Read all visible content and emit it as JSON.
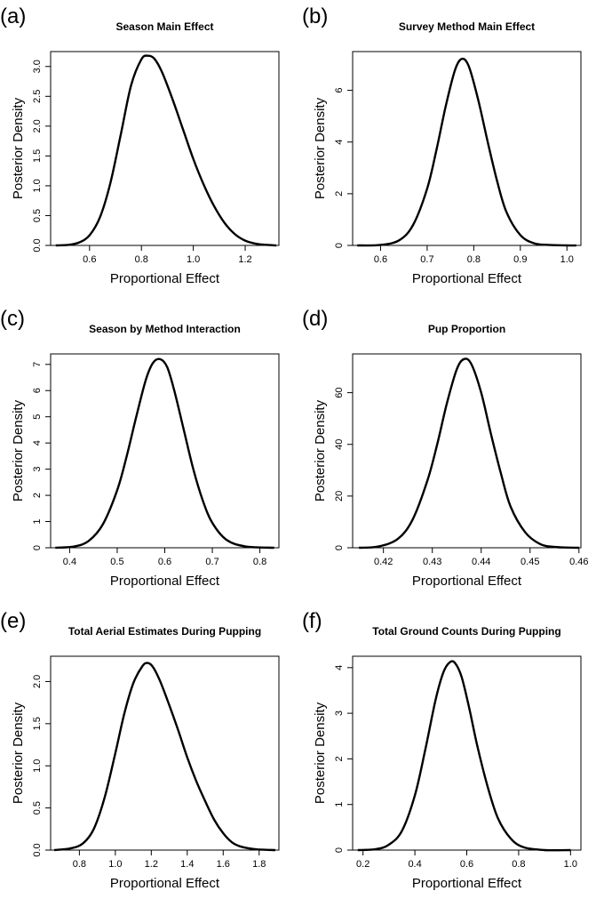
{
  "chart_data": [
    {
      "panel_letter": "(a)",
      "type": "line",
      "title": "Season Main Effect",
      "xlabel": "Proportional Effect",
      "ylabel": "Posterior Density",
      "xlim": [
        0.45,
        1.33
      ],
      "ylim": [
        0.0,
        3.25
      ],
      "xticks": [
        "0.6",
        "0.8",
        "1.0",
        "1.2"
      ],
      "yticks": [
        "0.0",
        "0.5",
        "1.0",
        "1.5",
        "2.0",
        "2.5",
        "3.0"
      ],
      "series": [
        {
          "x": [
            0.47,
            0.52,
            0.56,
            0.6,
            0.64,
            0.68,
            0.72,
            0.76,
            0.8,
            0.825,
            0.85,
            0.88,
            0.92,
            0.96,
            1.0,
            1.04,
            1.08,
            1.12,
            1.16,
            1.2,
            1.24,
            1.28,
            1.32
          ],
          "y": [
            0.0,
            0.01,
            0.05,
            0.17,
            0.47,
            1.04,
            1.85,
            2.68,
            3.12,
            3.18,
            3.13,
            2.9,
            2.45,
            1.95,
            1.45,
            1.02,
            0.66,
            0.38,
            0.19,
            0.08,
            0.03,
            0.01,
            0.0
          ]
        }
      ]
    },
    {
      "panel_letter": "(b)",
      "type": "line",
      "title": "Survey Method Main Effect",
      "xlabel": "Proportional Effect",
      "ylabel": "Posterior Density",
      "xlim": [
        0.54,
        1.03
      ],
      "ylim": [
        0,
        7.5
      ],
      "xticks": [
        "0.6",
        "0.7",
        "0.8",
        "0.9",
        "1.0"
      ],
      "yticks": [
        "0",
        "2",
        "4",
        "6"
      ],
      "series": [
        {
          "x": [
            0.55,
            0.6,
            0.64,
            0.67,
            0.7,
            0.72,
            0.74,
            0.76,
            0.775,
            0.79,
            0.81,
            0.83,
            0.85,
            0.87,
            0.9,
            0.93,
            0.96,
            1.0,
            1.02
          ],
          "y": [
            0.0,
            0.02,
            0.2,
            0.8,
            2.2,
            3.7,
            5.4,
            6.8,
            7.22,
            6.9,
            5.6,
            4.0,
            2.5,
            1.3,
            0.4,
            0.08,
            0.02,
            0.0,
            0.0
          ]
        }
      ]
    },
    {
      "panel_letter": "(c)",
      "type": "line",
      "title": "Season by Method Interaction",
      "xlabel": "Proportional Effect",
      "ylabel": "Posterior Density",
      "xlim": [
        0.36,
        0.84
      ],
      "ylim": [
        0,
        7.4
      ],
      "xticks": [
        "0.4",
        "0.5",
        "0.6",
        "0.7",
        "0.8"
      ],
      "yticks": [
        "0",
        "1",
        "2",
        "3",
        "4",
        "5",
        "6",
        "7"
      ],
      "series": [
        {
          "x": [
            0.37,
            0.41,
            0.44,
            0.47,
            0.5,
            0.52,
            0.54,
            0.56,
            0.575,
            0.59,
            0.605,
            0.62,
            0.64,
            0.66,
            0.68,
            0.7,
            0.73,
            0.77,
            0.83
          ],
          "y": [
            0.0,
            0.05,
            0.26,
            0.9,
            2.2,
            3.5,
            5.0,
            6.4,
            7.05,
            7.2,
            6.9,
            6.0,
            4.5,
            3.0,
            1.8,
            0.95,
            0.3,
            0.05,
            0.0
          ]
        }
      ]
    },
    {
      "panel_letter": "(d)",
      "type": "line",
      "title": "Pup Proportion",
      "xlabel": "Proportional Effect",
      "ylabel": "Posterior Density",
      "xlim": [
        0.4137,
        0.4604
      ],
      "ylim": [
        0,
        75
      ],
      "xticks": [
        "0.42",
        "0.43",
        "0.44",
        "0.45",
        "0.46"
      ],
      "yticks": [
        "0",
        "20",
        "40",
        "60"
      ],
      "series": [
        {
          "x": [
            0.415,
            0.419,
            0.423,
            0.426,
            0.429,
            0.431,
            0.433,
            0.435,
            0.4365,
            0.438,
            0.44,
            0.442,
            0.444,
            0.446,
            0.449,
            0.452,
            0.455,
            0.46
          ],
          "y": [
            0.0,
            0.5,
            3.5,
            11,
            26,
            40,
            56,
            69,
            73,
            71,
            60,
            44,
            29,
            16,
            6,
            1.5,
            0.3,
            0.0
          ]
        }
      ]
    },
    {
      "panel_letter": "(e)",
      "type": "line",
      "title": "Total Aerial Estimates During Pupping",
      "xlabel": "Proportional Effect",
      "ylabel": "Posterior Density",
      "xlim": [
        0.64,
        1.91
      ],
      "ylim": [
        0.0,
        2.3
      ],
      "xticks": [
        "0.8",
        "1.0",
        "1.2",
        "1.4",
        "1.6",
        "1.8"
      ],
      "yticks": [
        "0.0",
        "0.5",
        "1.0",
        "1.5",
        "2.0"
      ],
      "series": [
        {
          "x": [
            0.66,
            0.75,
            0.82,
            0.88,
            0.94,
            1.0,
            1.05,
            1.1,
            1.15,
            1.18,
            1.21,
            1.25,
            1.3,
            1.35,
            1.4,
            1.45,
            1.5,
            1.55,
            1.6,
            1.65,
            1.7,
            1.78,
            1.89
          ],
          "y": [
            0.0,
            0.02,
            0.08,
            0.25,
            0.62,
            1.15,
            1.62,
            1.98,
            2.18,
            2.22,
            2.17,
            2.0,
            1.72,
            1.42,
            1.1,
            0.82,
            0.58,
            0.36,
            0.2,
            0.09,
            0.04,
            0.01,
            0.0
          ]
        }
      ]
    },
    {
      "panel_letter": "(f)",
      "type": "line",
      "title": "Total Ground Counts During Pupping",
      "xlabel": "Proportional Effect",
      "ylabel": "Posterior Density",
      "xlim": [
        0.16,
        1.04
      ],
      "ylim": [
        0,
        4.25
      ],
      "xticks": [
        "0.2",
        "0.4",
        "0.6",
        "0.8",
        "1.0"
      ],
      "yticks": [
        "0",
        "1",
        "2",
        "3",
        "4"
      ],
      "series": [
        {
          "x": [
            0.18,
            0.25,
            0.3,
            0.35,
            0.4,
            0.44,
            0.48,
            0.51,
            0.535,
            0.555,
            0.58,
            0.61,
            0.64,
            0.68,
            0.72,
            0.77,
            0.82,
            0.9,
            1.0
          ],
          "y": [
            0.0,
            0.02,
            0.12,
            0.42,
            1.2,
            2.2,
            3.3,
            3.9,
            4.12,
            4.1,
            3.8,
            3.1,
            2.3,
            1.4,
            0.7,
            0.25,
            0.06,
            0.0,
            0.0
          ]
        }
      ]
    }
  ]
}
